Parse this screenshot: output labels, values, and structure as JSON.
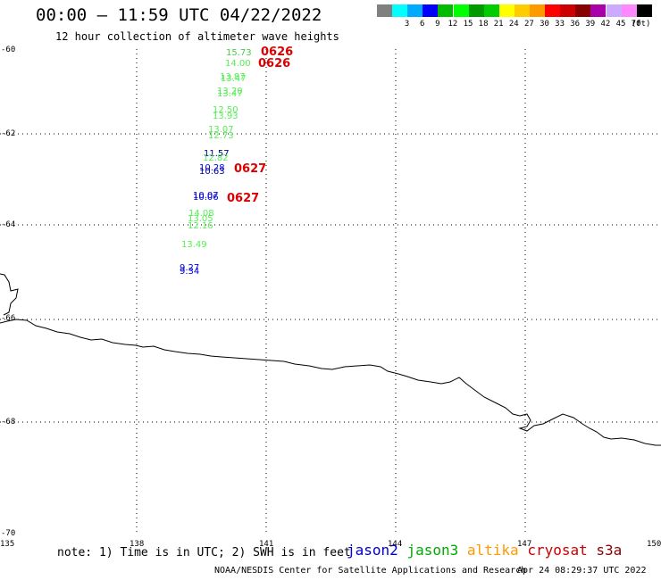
{
  "header": {
    "title": "00:00 – 11:59 UTC 04/22/2022",
    "subtitle": "12 hour collection of altimeter wave heights"
  },
  "legend": {
    "unit": "(ft)",
    "bins": [
      {
        "color": "#808080",
        "label": ""
      },
      {
        "color": "#00ffff",
        "label": "3"
      },
      {
        "color": "#00aaff",
        "label": "6"
      },
      {
        "color": "#0000ff",
        "label": "9"
      },
      {
        "color": "#00bb00",
        "label": "12"
      },
      {
        "color": "#00ff00",
        "label": "15"
      },
      {
        "color": "#009900",
        "label": "18"
      },
      {
        "color": "#00cc00",
        "label": "21"
      },
      {
        "color": "#ffff00",
        "label": "24"
      },
      {
        "color": "#ffcc00",
        "label": "27"
      },
      {
        "color": "#ff9900",
        "label": "30"
      },
      {
        "color": "#ff0000",
        "label": "33"
      },
      {
        "color": "#cc0000",
        "label": "36"
      },
      {
        "color": "#880000",
        "label": "39"
      },
      {
        "color": "#aa00aa",
        "label": "42"
      },
      {
        "color": "#ccaaff",
        "label": "45"
      },
      {
        "color": "#ff88ff",
        "label": "70"
      },
      {
        "color": "#000000",
        "label": ""
      }
    ]
  },
  "map": {
    "lat_labels": [
      "-60",
      "-62",
      "-64",
      "-66",
      "-68",
      "-70"
    ],
    "lon_labels": [
      "135",
      "138",
      "141",
      "144",
      "147",
      "150"
    ]
  },
  "observations": [
    {
      "text": "15.73",
      "color": "#44cc44"
    },
    {
      "text": "14.00",
      "color": "#55ee55"
    },
    {
      "text": "13.87",
      "color": "#55ee55"
    },
    {
      "text": "13.47",
      "color": "#55ee55"
    },
    {
      "text": "13.20",
      "color": "#55ee55"
    },
    {
      "text": "13.47",
      "color": "#55ee55"
    },
    {
      "text": "12.50",
      "color": "#55ee55"
    },
    {
      "text": "13.93",
      "color": "#55ee55"
    },
    {
      "text": "13.07",
      "color": "#55ee55"
    },
    {
      "text": "12.73",
      "color": "#55ee55"
    },
    {
      "text": "11.57",
      "color": "#000088"
    },
    {
      "text": "12.82",
      "color": "#55ee55"
    },
    {
      "text": "10.28",
      "color": "#0000dd"
    },
    {
      "text": "10.63",
      "color": "#0000aa"
    },
    {
      "text": "10.07",
      "color": "#0000dd"
    },
    {
      "text": "10.06",
      "color": "#0000dd"
    },
    {
      "text": "14.08",
      "color": "#55ee55"
    },
    {
      "text": "13.05",
      "color": "#55ee55"
    },
    {
      "text": "12.16",
      "color": "#55ee55"
    },
    {
      "text": "13.49",
      "color": "#55ee55"
    },
    {
      "text": "9.27",
      "color": "#0000dd"
    },
    {
      "text": "9.34",
      "color": "#0000dd"
    }
  ],
  "time_tags": [
    {
      "text": "0626",
      "color": "#dd0000"
    },
    {
      "text": "0626",
      "color": "#dd0000"
    },
    {
      "text": "0627",
      "color": "#dd0000"
    },
    {
      "text": "0627",
      "color": "#dd0000"
    }
  ],
  "footer": {
    "note": "note: 1) Time is in UTC; 2) SWH is in feet",
    "satellites": [
      {
        "name": "jason2",
        "color": "#0000cc"
      },
      {
        "name": "jason3",
        "color": "#00aa00"
      },
      {
        "name": "altika",
        "color": "#ff9900"
      },
      {
        "name": "cryosat",
        "color": "#cc0000"
      },
      {
        "name": "s3a",
        "color": "#880000"
      }
    ],
    "credit": "NOAA/NESDIS Center for Satellite Applications and Research",
    "date": "Apr 24 08:29:37 UTC 2022"
  }
}
